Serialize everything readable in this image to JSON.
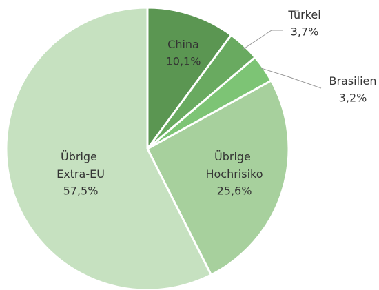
{
  "chart_data": {
    "type": "pie",
    "categories": [
      "China",
      "Türkei",
      "Brasilien",
      "Übrige Hochrisiko",
      "Übrige Extra-EU"
    ],
    "values": [
      10.1,
      3.7,
      3.2,
      25.6,
      57.5
    ],
    "value_labels": [
      "10,1%",
      "3,7%",
      "3,2%",
      "25,6%",
      "57,5%"
    ],
    "colors": [
      "#5b9652",
      "#69aa60",
      "#7dc475",
      "#a7d09d",
      "#c6e1c0"
    ]
  }
}
